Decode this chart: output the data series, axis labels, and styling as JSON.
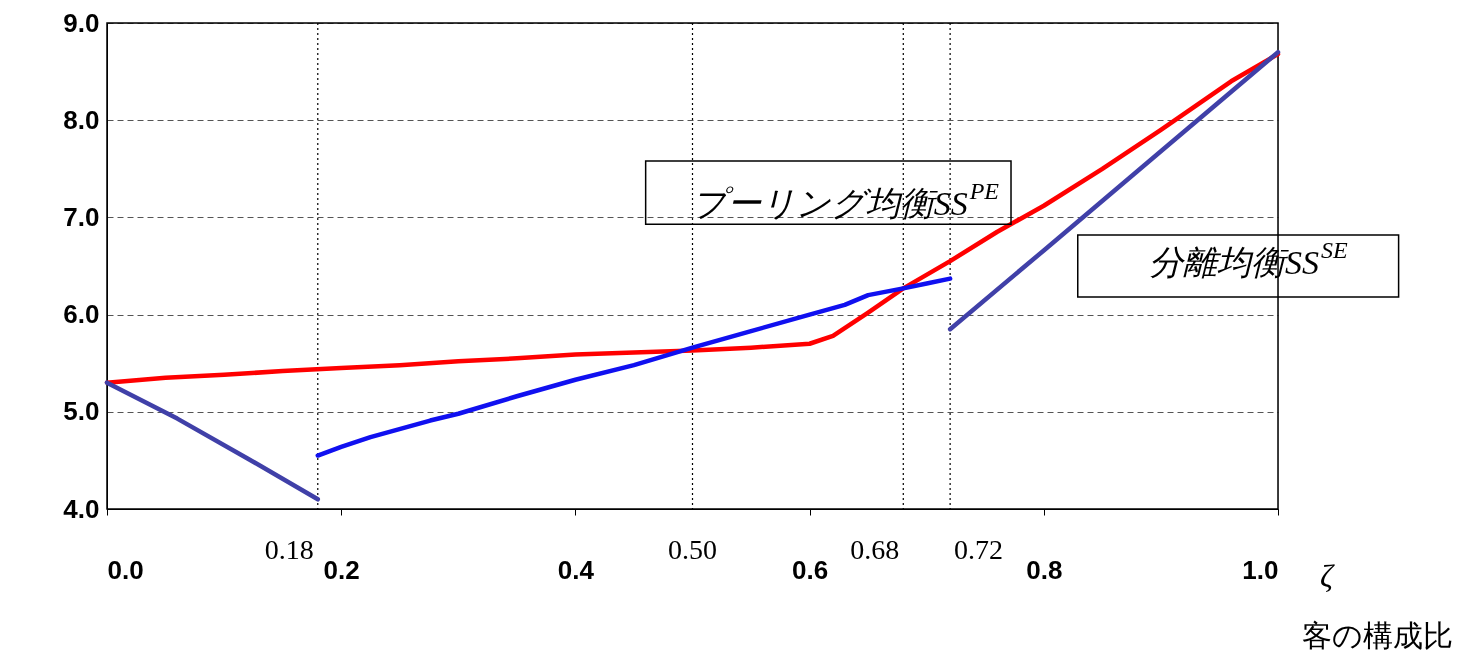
{
  "chart_data": {
    "type": "line",
    "xlabel": "ζ",
    "annotations": [
      "客の構成比"
    ],
    "xlim": [
      0,
      1.0
    ],
    "ylim": [
      4,
      9
    ],
    "xticks": [
      {
        "value": 0,
        "label": "0.0"
      },
      {
        "value": 0.2,
        "label": "0.2"
      },
      {
        "value": 0.4,
        "label": "0.4"
      },
      {
        "value": 0.6,
        "label": "0.6"
      },
      {
        "value": 0.8,
        "label": "0.8"
      },
      {
        "value": 1.0,
        "label": "1.0"
      }
    ],
    "yticks": [
      {
        "value": 4,
        "label": "4.0"
      },
      {
        "value": 5,
        "label": "5.0"
      },
      {
        "value": 6,
        "label": "6.0"
      },
      {
        "value": 7,
        "label": "7.0"
      },
      {
        "value": 8,
        "label": "8.0"
      },
      {
        "value": 9,
        "label": "9.0"
      }
    ],
    "grid": "y",
    "marker": "none",
    "line_style": "solid",
    "series": [
      {
        "name": "プーリング均衡SS$^{PE}$",
        "color": "#ff0000",
        "x": [
          0,
          0.05,
          0.1,
          0.15,
          0.2,
          0.25,
          0.3,
          0.35,
          0.4,
          0.45,
          0.5,
          0.55,
          0.6,
          0.62,
          0.65,
          0.68,
          0.72,
          0.76,
          0.8,
          0.85,
          0.9,
          0.93,
          0.96,
          1.0
        ],
        "values": [
          5.3,
          5.35,
          5.38,
          5.42,
          5.45,
          5.48,
          5.52,
          5.55,
          5.59,
          5.61,
          5.63,
          5.66,
          5.7,
          5.78,
          6.02,
          6.27,
          6.55,
          6.85,
          7.12,
          7.5,
          7.9,
          8.15,
          8.4,
          8.68
        ]
      },
      {
        "color": "#4040a8",
        "x": [
          0,
          0.06,
          0.12,
          0.18
        ],
        "values": [
          5.3,
          4.93,
          4.52,
          4.1
        ]
      },
      {
        "color": "#1010f0",
        "x": [
          0.18,
          0.2,
          0.225,
          0.276,
          0.3,
          0.35,
          0.4,
          0.45,
          0.5,
          0.55,
          0.6,
          0.63,
          0.65,
          0.68,
          0.7,
          0.72
        ],
        "values": [
          4.55,
          4.64,
          4.74,
          4.91,
          4.98,
          5.16,
          5.33,
          5.48,
          5.66,
          5.83,
          6.0,
          6.1,
          6.2,
          6.27,
          6.32,
          6.37
        ]
      },
      {
        "name": "分離均衡SS$^{SE}$",
        "color": "#4040a8",
        "x": [
          0.72,
          0.8,
          0.9,
          1.0
        ],
        "values": [
          5.85,
          6.66,
          7.68,
          8.7
        ]
      }
    ],
    "ref_lines": [
      {
        "axis": "x",
        "value": 0.18,
        "label": "0.18",
        "color": "#000000",
        "line_style": "dotted"
      },
      {
        "axis": "x",
        "value": 0.5,
        "label": "0.50",
        "color": "#000000",
        "line_style": "dotted"
      },
      {
        "axis": "x",
        "value": 0.68,
        "label": "0.68",
        "color": "#000000",
        "line_style": "dotted"
      },
      {
        "axis": "x",
        "value": 0.72,
        "label": "0.72",
        "color": "#000000",
        "line_style": "dotted"
      }
    ]
  }
}
